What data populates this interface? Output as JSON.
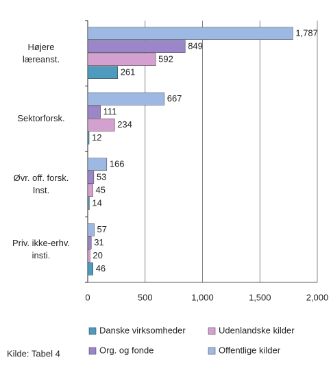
{
  "chart_data": {
    "type": "hbar",
    "categories": [
      "Højere\nlæreanst.",
      "Sektorforsk.",
      "Øvr. off. forsk.\nInst.",
      "Priv. ikke-erhv.\ninsti."
    ],
    "series": [
      {
        "name": "Danske virksomheder",
        "color": "#4e9bbf",
        "values": [
          261,
          12,
          14,
          46
        ]
      },
      {
        "name": "Udenlandske kilder",
        "color": "#d4a0cf",
        "values": [
          592,
          234,
          45,
          20
        ]
      },
      {
        "name": "Org. og fonde",
        "color": "#9b86c9",
        "values": [
          849,
          111,
          53,
          31
        ]
      },
      {
        "name": "Offentlige kilder",
        "color": "#9db9e3",
        "values": [
          1787,
          667,
          166,
          57
        ],
        "value_labels": [
          "1,787",
          "667",
          "166",
          "57"
        ]
      }
    ],
    "xlim": [
      0,
      2000
    ],
    "xticks": [
      0,
      500,
      {
        "value": 1000,
        "label": "1,000"
      },
      {
        "value": 1500,
        "label": "1,500"
      },
      {
        "value": 2000,
        "label": "2,000"
      }
    ],
    "grid": true,
    "legend": "bottom",
    "source": "Kilde: Tabel 4"
  }
}
